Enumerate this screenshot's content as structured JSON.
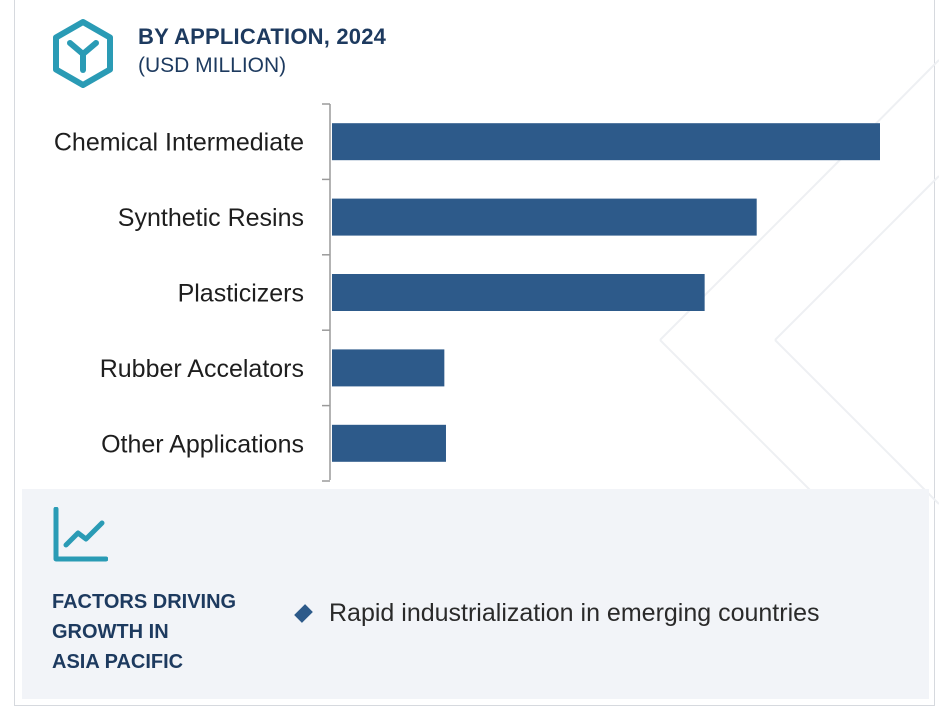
{
  "header": {
    "title": "BY APPLICATION, 2024",
    "subtitle": "(USD MILLION)"
  },
  "colors": {
    "bar": "#2d5a8a",
    "heading": "#1d3a5f",
    "accent_icon": "#2a9bb5",
    "panel_bg": "#f2f4f8"
  },
  "chart_data": {
    "type": "bar",
    "orientation": "horizontal",
    "categories": [
      "Chemical Intermediate",
      "Synthetic Resins",
      "Plasticizers",
      "Rubber Accelators",
      "Other Applications"
    ],
    "values": [
      100,
      77.5,
      68,
      20.5,
      20.8
    ],
    "xlim": [
      0,
      100
    ],
    "grid": false,
    "title": "BY APPLICATION, 2024",
    "ylabel": "",
    "xlabel": ""
  },
  "factors": {
    "title_lines": [
      "FACTORS DRIVING",
      "GROWTH IN",
      "ASIA PACIFIC"
    ],
    "items": [
      "Rapid industrialization in emerging countries"
    ]
  }
}
